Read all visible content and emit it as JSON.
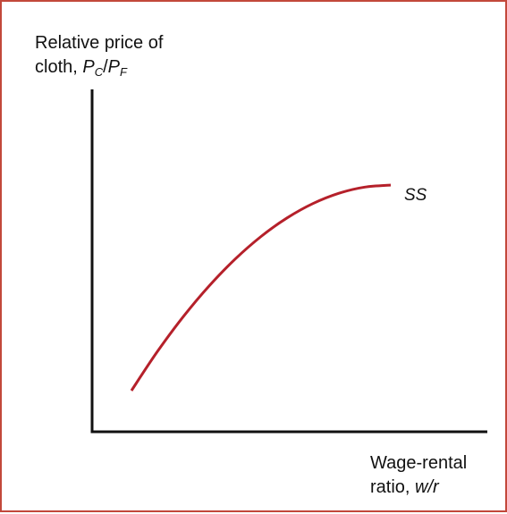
{
  "chart_data": {
    "type": "line",
    "title": "",
    "ylabel": {
      "line1": "Relative price of",
      "line2_prefix": "cloth, ",
      "num_symbol": "P",
      "num_sub": "C",
      "slash": "/",
      "den_symbol": "P",
      "den_sub": "F"
    },
    "xlabel": {
      "line1": "Wage-rental",
      "line2_prefix": "ratio, ",
      "variable": "w/r"
    },
    "series": [
      {
        "name": "SS",
        "shape": "concave-increasing",
        "x": [
          0.0,
          0.1,
          0.2,
          0.3,
          0.4,
          0.5,
          0.6,
          0.7,
          0.8,
          0.9,
          1.0
        ],
        "y": [
          0.0,
          0.19,
          0.36,
          0.51,
          0.64,
          0.75,
          0.84,
          0.91,
          0.96,
          0.99,
          1.0
        ],
        "color": "#b5202a"
      }
    ],
    "axes_color": "#111111",
    "grid": false,
    "tick_labels": false,
    "frame_color": "#c2483b"
  }
}
